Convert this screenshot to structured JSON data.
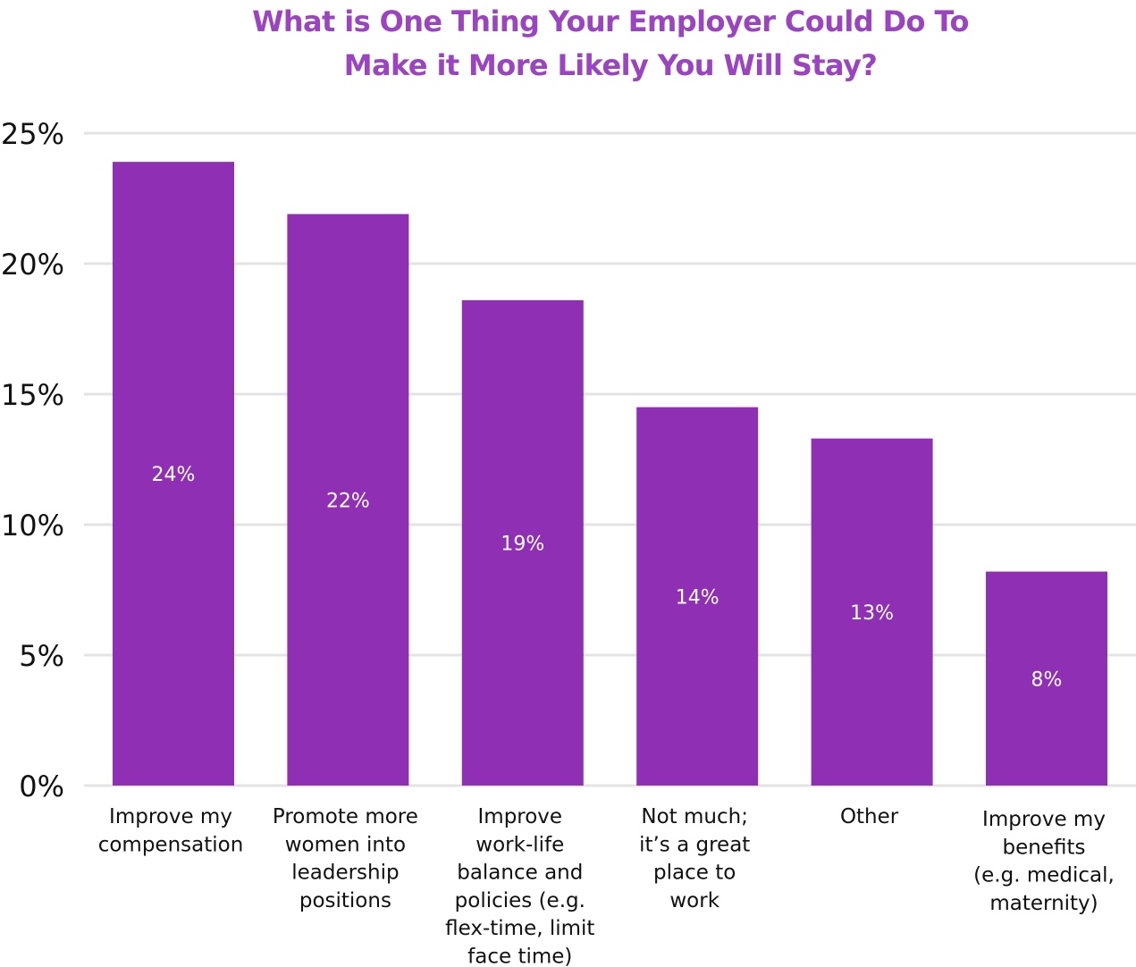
{
  "chart_data": {
    "type": "bar",
    "title_lines": [
      "What is One Thing Your Employer Could Do To",
      "Make it More Likely You Will Stay?"
    ],
    "categories": [
      [
        "Improve my",
        "compensation"
      ],
      [
        "Promote more",
        "women into",
        "leadership",
        "positions"
      ],
      [
        "Improve",
        "work-life",
        "balance and",
        "policies (e.g.",
        "flex-time, limit",
        "face time)"
      ],
      [
        "Not much;",
        "it’s a great",
        "place to",
        "work"
      ],
      [
        "Other"
      ],
      [
        "Improve my",
        "benefits",
        "(e.g. medical,",
        "maternity)"
      ]
    ],
    "values": [
      23.9,
      21.9,
      18.6,
      14.5,
      13.3,
      8.2
    ],
    "data_labels": [
      "24%",
      "22%",
      "19%",
      "14%",
      "13%",
      "8%"
    ],
    "ylim": [
      0,
      25
    ],
    "yticks": [
      0,
      5,
      10,
      15,
      20,
      25
    ],
    "ytick_labels": [
      "0%",
      "5%",
      "10%",
      "15%",
      "20%",
      "25%"
    ],
    "grid": true,
    "legend": "none",
    "xlabel": "",
    "ylabel": "",
    "colors": {
      "bar": "#8e2fb4",
      "title": "#9b44c0",
      "grid": "#e3e3e3",
      "bar_label": "#ffffff",
      "axis_text": "#111111"
    }
  }
}
